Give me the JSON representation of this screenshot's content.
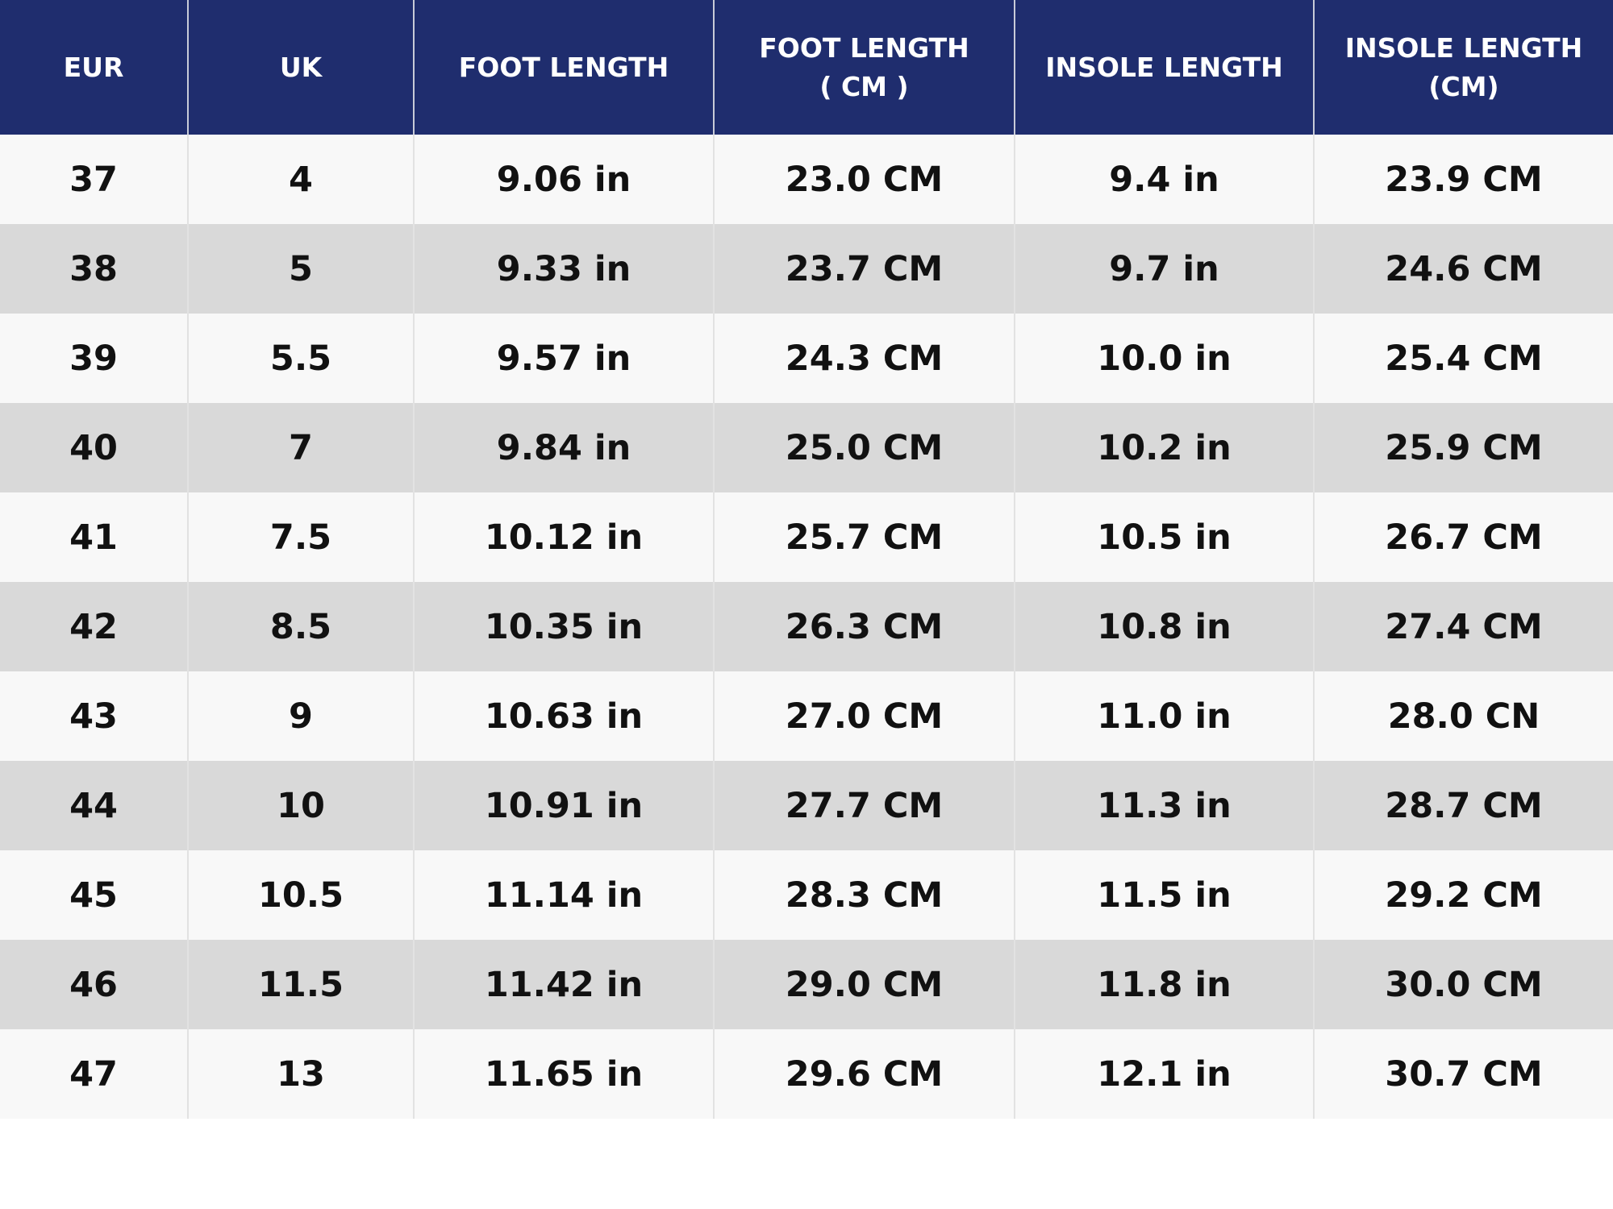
{
  "table": {
    "header": [
      "EUR",
      "UK",
      "FOOT LENGTH",
      "FOOT LENGTH\n( CM )",
      "INSOLE LENGTH",
      "INSOLE LENGTH\n(CM)"
    ],
    "rows": [
      [
        "37",
        "4",
        "9.06 in",
        "23.0 CM",
        "9.4 in",
        "23.9 CM"
      ],
      [
        "38",
        "5",
        "9.33 in",
        "23.7 CM",
        "9.7 in",
        "24.6 CM"
      ],
      [
        "39",
        "5.5",
        "9.57 in",
        "24.3 CM",
        "10.0 in",
        "25.4 CM"
      ],
      [
        "40",
        "7",
        "9.84 in",
        "25.0 CM",
        "10.2 in",
        "25.9 CM"
      ],
      [
        "41",
        "7.5",
        "10.12 in",
        "25.7 CM",
        "10.5 in",
        "26.7 CM"
      ],
      [
        "42",
        "8.5",
        "10.35 in",
        "26.3 CM",
        "10.8 in",
        "27.4 CM"
      ],
      [
        "43",
        "9",
        "10.63 in",
        "27.0 CM",
        "11.0 in",
        "28.0 CN"
      ],
      [
        "44",
        "10",
        "10.91 in",
        "27.7 CM",
        "11.3 in",
        "28.7 CM"
      ],
      [
        "45",
        "10.5",
        "11.14 in",
        "28.3 CM",
        "11.5 in",
        "29.2 CM"
      ],
      [
        "46",
        "11.5",
        "11.42 in",
        "29.0 CM",
        "11.8 in",
        "30.0 CM"
      ],
      [
        "47",
        "13",
        "11.65 in",
        "29.6 CM",
        "12.1 in",
        "30.7 CM"
      ]
    ]
  }
}
